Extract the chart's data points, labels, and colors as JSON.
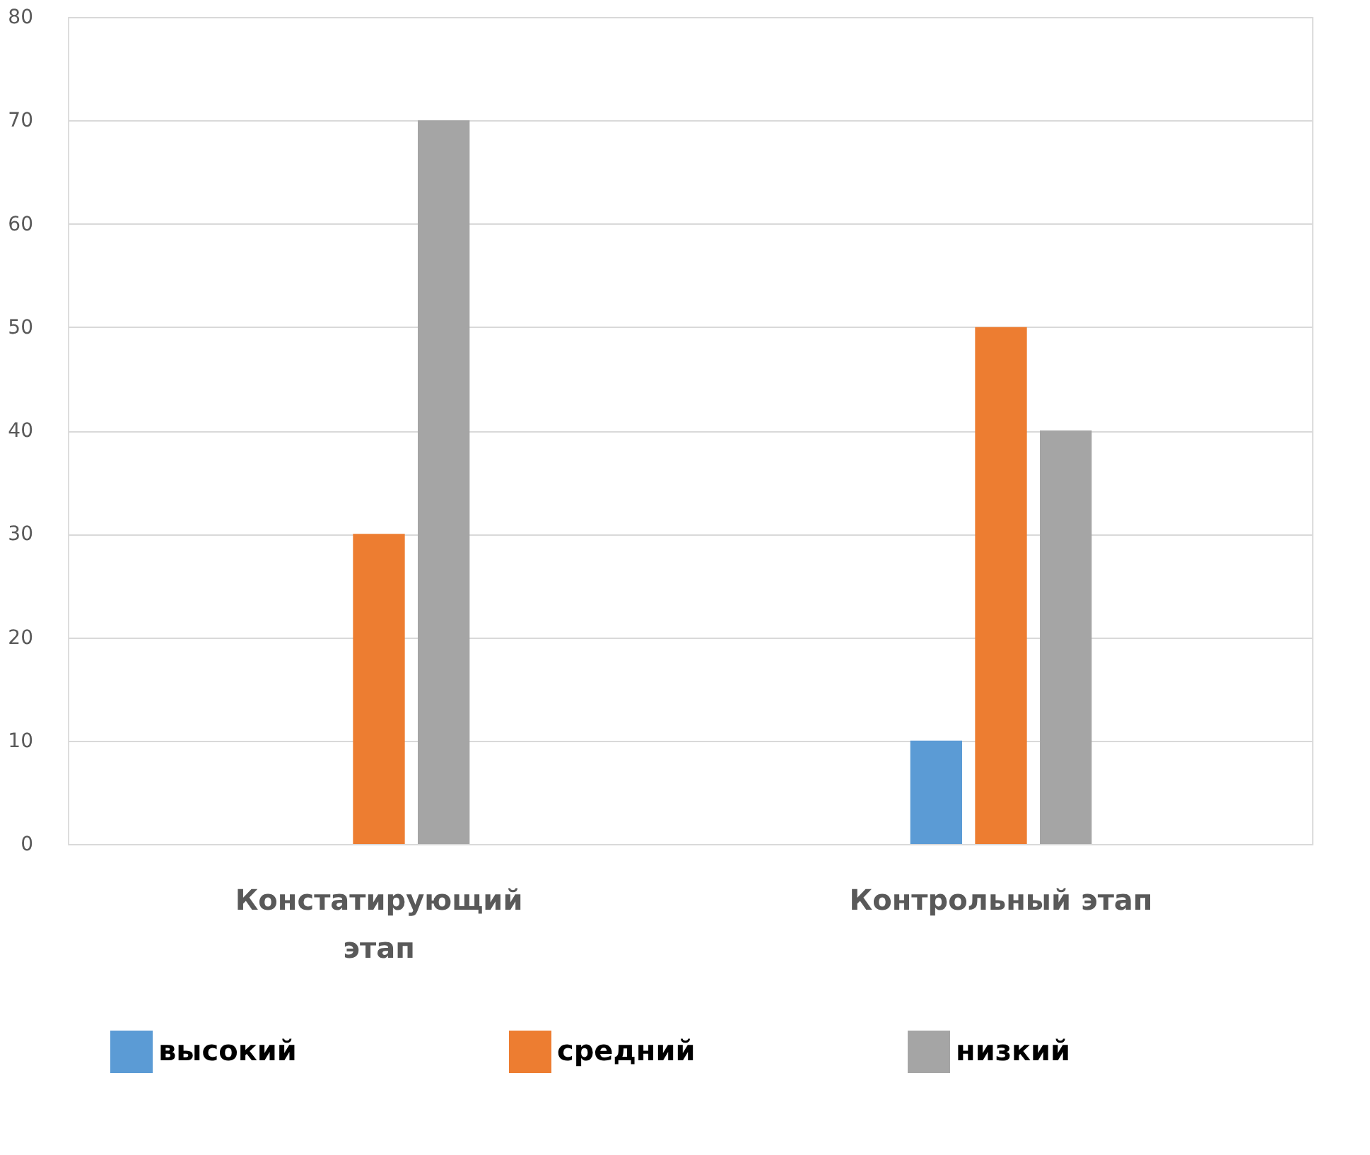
{
  "chart_data": {
    "type": "bar",
    "categories": [
      "Констатирующий этап",
      "Контрольный этап"
    ],
    "series": [
      {
        "name": "высокий",
        "color": "#5b9bd5",
        "values": [
          0,
          10
        ]
      },
      {
        "name": "средний",
        "color": "#ed7d31",
        "values": [
          30,
          50
        ]
      },
      {
        "name": "низкий",
        "color": "#a5a5a5",
        "values": [
          70,
          40
        ]
      }
    ],
    "ylim": [
      0,
      80
    ],
    "yticks": [
      0,
      10,
      20,
      30,
      40,
      50,
      60,
      70,
      80
    ],
    "grid": "y",
    "legend": "bottom"
  }
}
